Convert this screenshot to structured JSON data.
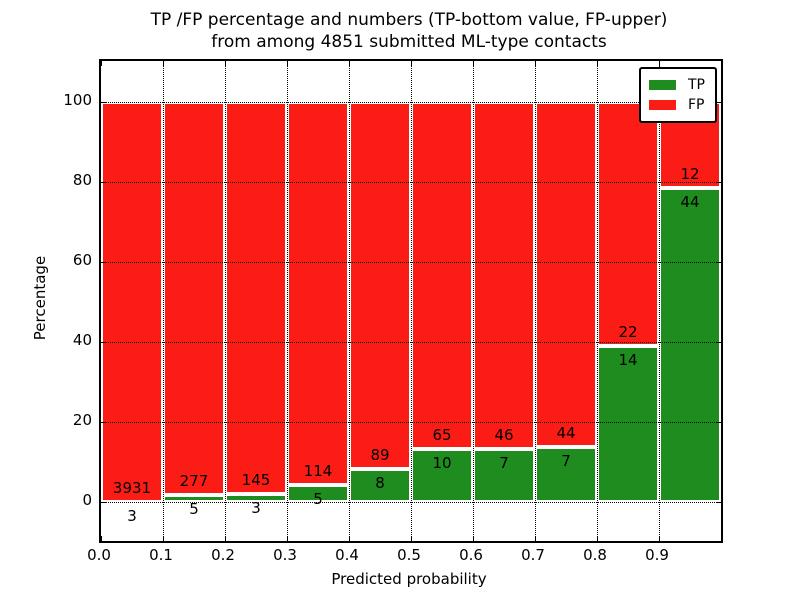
{
  "chart_data": {
    "type": "bar",
    "subtype": "stacked-100-percent",
    "title_line1": "TP /FP percentage and numbers (TP-bottom value, FP-upper)",
    "title_line2": "from among 4851 submitted ML-type contacts",
    "xlabel": "Predicted probability",
    "ylabel": "Percentage",
    "x_tick_labels": [
      "0.0",
      "0.1",
      "0.2",
      "0.3",
      "0.4",
      "0.5",
      "0.6",
      "0.7",
      "0.8",
      "0.9"
    ],
    "y_ticks": [
      0,
      20,
      40,
      60,
      80,
      100
    ],
    "y_tick_labels": [
      "0",
      "20",
      "40",
      "60",
      "80",
      "100"
    ],
    "xlim": [
      0.0,
      1.0
    ],
    "ylim": [
      -10,
      110
    ],
    "bin_width": 0.1,
    "grid": "dotted",
    "legend_position": "upper right",
    "categories": [
      "0.0-0.1",
      "0.1-0.2",
      "0.2-0.3",
      "0.3-0.4",
      "0.4-0.5",
      "0.5-0.6",
      "0.6-0.7",
      "0.7-0.8",
      "0.8-0.9",
      "0.9-1.0"
    ],
    "series": [
      {
        "name": "TP",
        "color": "#1e8c1e",
        "counts": [
          3,
          5,
          3,
          5,
          8,
          10,
          7,
          7,
          14,
          44
        ]
      },
      {
        "name": "FP",
        "color": "#fb1d15",
        "counts": [
          3931,
          277,
          145,
          114,
          89,
          65,
          46,
          44,
          22,
          12
        ]
      }
    ],
    "tp_percent": [
      0.08,
      1.77,
      2.03,
      4.2,
      8.25,
      13.33,
      13.21,
      13.73,
      38.89,
      78.57
    ],
    "total_contacts": 4851
  }
}
